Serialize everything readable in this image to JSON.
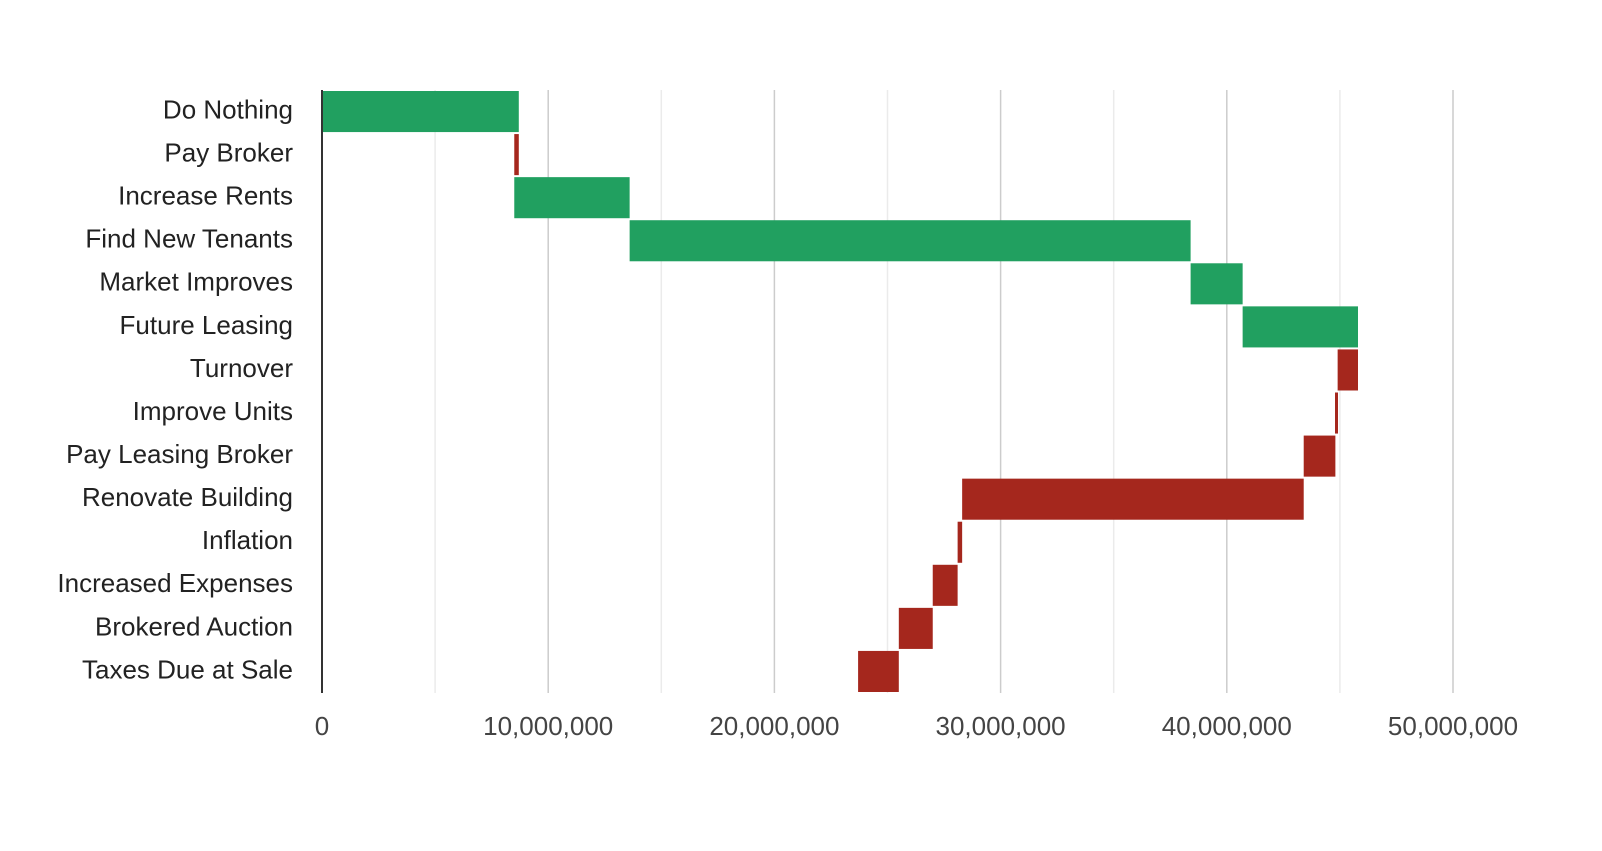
{
  "colors": {
    "increase": "#21a060",
    "decrease": "#a5271d",
    "gridline_major": "#cccccc",
    "gridline_minor": "#ebebeb",
    "axis": "#333333",
    "label_text": "#222222",
    "tick_text": "#444444"
  },
  "chart_data": {
    "type": "bar",
    "subtype": "waterfall",
    "orientation": "horizontal",
    "title": "",
    "xlabel": "",
    "ylabel": "",
    "xlim": [
      0,
      51500000
    ],
    "grid": true,
    "legend": "none",
    "x_ticks": [
      0,
      10000000,
      20000000,
      30000000,
      40000000,
      50000000
    ],
    "x_tick_labels": [
      "0",
      "10,000,000",
      "20,000,000",
      "30,000,000",
      "40,000,000",
      "50,000,000"
    ],
    "bars": [
      {
        "label": "Do Nothing",
        "start": 0,
        "end": 8700000,
        "direction": "increase"
      },
      {
        "label": "Pay Broker",
        "start": 8700000,
        "end": 8500000,
        "direction": "decrease"
      },
      {
        "label": "Increase Rents",
        "start": 8500000,
        "end": 13600000,
        "direction": "increase"
      },
      {
        "label": "Find New Tenants",
        "start": 13600000,
        "end": 38400000,
        "direction": "increase"
      },
      {
        "label": "Market Improves",
        "start": 38400000,
        "end": 40700000,
        "direction": "increase"
      },
      {
        "label": "Future Leasing",
        "start": 40700000,
        "end": 45800000,
        "direction": "increase"
      },
      {
        "label": "Turnover",
        "start": 45800000,
        "end": 44900000,
        "direction": "decrease"
      },
      {
        "label": "Improve Units",
        "start": 44900000,
        "end": 44800000,
        "direction": "decrease"
      },
      {
        "label": "Pay Leasing Broker",
        "start": 44800000,
        "end": 43400000,
        "direction": "decrease"
      },
      {
        "label": "Renovate Building",
        "start": 43400000,
        "end": 28300000,
        "direction": "decrease"
      },
      {
        "label": "Inflation",
        "start": 28300000,
        "end": 28100000,
        "direction": "decrease"
      },
      {
        "label": "Increased Expenses",
        "start": 28100000,
        "end": 27000000,
        "direction": "decrease"
      },
      {
        "label": "Brokered Auction",
        "start": 27000000,
        "end": 25500000,
        "direction": "decrease"
      },
      {
        "label": "Taxes Due at Sale",
        "start": 25500000,
        "end": 23700000,
        "direction": "decrease"
      }
    ]
  }
}
